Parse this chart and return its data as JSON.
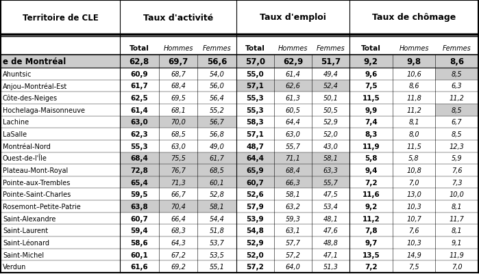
{
  "col_headers_main": [
    "Territoire de CLE",
    "Taux d'activité",
    "Taux d'emploi",
    "Taux de chômage"
  ],
  "montreal_row": {
    "name": "e de Montréal",
    "values": [
      "62,8",
      "69,7",
      "56,6",
      "57,0",
      "62,9",
      "51,7",
      "9,2",
      "9,8",
      "8,6"
    ]
  },
  "rows": [
    {
      "name": "Ahuntsic",
      "values": [
        "60,9",
        "68,7",
        "54,0",
        "55,0",
        "61,4",
        "49,4",
        "9,6",
        "10,6",
        "8,5"
      ],
      "shade_cols": [
        8
      ]
    },
    {
      "name": "Anjou–Montréal-Est",
      "values": [
        "61,7",
        "68,4",
        "56,0",
        "57,1",
        "62,6",
        "52,4",
        "7,5",
        "8,6",
        "6,3"
      ],
      "shade_cols": [
        3,
        4,
        5
      ]
    },
    {
      "name": "Côte-des-Neiges",
      "values": [
        "62,5",
        "69,5",
        "56,4",
        "55,3",
        "61,3",
        "50,1",
        "11,5",
        "11,8",
        "11,2"
      ],
      "shade_cols": []
    },
    {
      "name": "Hochelaga-Maisonneuve",
      "values": [
        "61,4",
        "68,1",
        "55,2",
        "55,3",
        "60,5",
        "50,5",
        "9,9",
        "11,2",
        "8,5"
      ],
      "shade_cols": [
        8
      ]
    },
    {
      "name": "Lachine",
      "values": [
        "63,0",
        "70,0",
        "56,7",
        "58,3",
        "64,4",
        "52,9",
        "7,4",
        "8,1",
        "6,7"
      ],
      "shade_cols": [
        0,
        1,
        2
      ]
    },
    {
      "name": "LaSalle",
      "values": [
        "62,3",
        "68,5",
        "56,8",
        "57,1",
        "63,0",
        "52,0",
        "8,3",
        "8,0",
        "8,5"
      ],
      "shade_cols": []
    },
    {
      "name": "Montréal-Nord",
      "values": [
        "55,3",
        "63,0",
        "49,0",
        "48,7",
        "55,7",
        "43,0",
        "11,9",
        "11,5",
        "12,3"
      ],
      "shade_cols": []
    },
    {
      "name": "Ouest-de-l'Île",
      "values": [
        "68,4",
        "75,5",
        "61,7",
        "64,4",
        "71,1",
        "58,1",
        "5,8",
        "5,8",
        "5,9"
      ],
      "shade_cols": [
        0,
        1,
        2,
        3,
        4,
        5
      ]
    },
    {
      "name": "Plateau-Mont-Royal",
      "values": [
        "72,8",
        "76,7",
        "68,5",
        "65,9",
        "68,4",
        "63,3",
        "9,4",
        "10,8",
        "7,6"
      ],
      "shade_cols": [
        0,
        1,
        2,
        3,
        4,
        5
      ]
    },
    {
      "name": "Pointe-aux-Trembles",
      "values": [
        "65,4",
        "71,3",
        "60,1",
        "60,7",
        "66,3",
        "55,7",
        "7,2",
        "7,0",
        "7,3"
      ],
      "shade_cols": [
        0,
        1,
        2,
        3,
        4,
        5
      ]
    },
    {
      "name": "Pointe-Saint-Charles",
      "values": [
        "59,5",
        "66,7",
        "52,8",
        "52,6",
        "58,1",
        "47,5",
        "11,6",
        "13,0",
        "10,0"
      ],
      "shade_cols": []
    },
    {
      "name": "Rosemont–Petite-Patrie",
      "values": [
        "63,8",
        "70,4",
        "58,1",
        "57,9",
        "63,2",
        "53,4",
        "9,2",
        "10,3",
        "8,1"
      ],
      "shade_cols": [
        0,
        1,
        2
      ]
    },
    {
      "name": "Saint-Alexandre",
      "values": [
        "60,7",
        "66,4",
        "54,4",
        "53,9",
        "59,3",
        "48,1",
        "11,2",
        "10,7",
        "11,7"
      ],
      "shade_cols": []
    },
    {
      "name": "Saint-Laurent",
      "values": [
        "59,4",
        "68,3",
        "51,8",
        "54,8",
        "63,1",
        "47,6",
        "7,8",
        "7,6",
        "8,1"
      ],
      "shade_cols": []
    },
    {
      "name": "Saint-Léonard",
      "values": [
        "58,6",
        "64,3",
        "53,7",
        "52,9",
        "57,7",
        "48,8",
        "9,7",
        "10,3",
        "9,1"
      ],
      "shade_cols": []
    },
    {
      "name": "Saint-Michel",
      "values": [
        "60,1",
        "67,2",
        "53,5",
        "52,0",
        "57,2",
        "47,1",
        "13,5",
        "14,9",
        "11,9"
      ],
      "shade_cols": []
    },
    {
      "name": "Verdun",
      "values": [
        "61,6",
        "69,2",
        "55,1",
        "57,2",
        "64,0",
        "51,3",
        "7,2",
        "7,5",
        "7,0"
      ],
      "shade_cols": []
    }
  ],
  "shaded_color": "#cccccc",
  "montreal_shade_cols": [
    0,
    1,
    2,
    3,
    4,
    5,
    6,
    7,
    8
  ],
  "background": "#ffffff",
  "figw": 6.99,
  "figh": 4.02,
  "dpi": 100
}
